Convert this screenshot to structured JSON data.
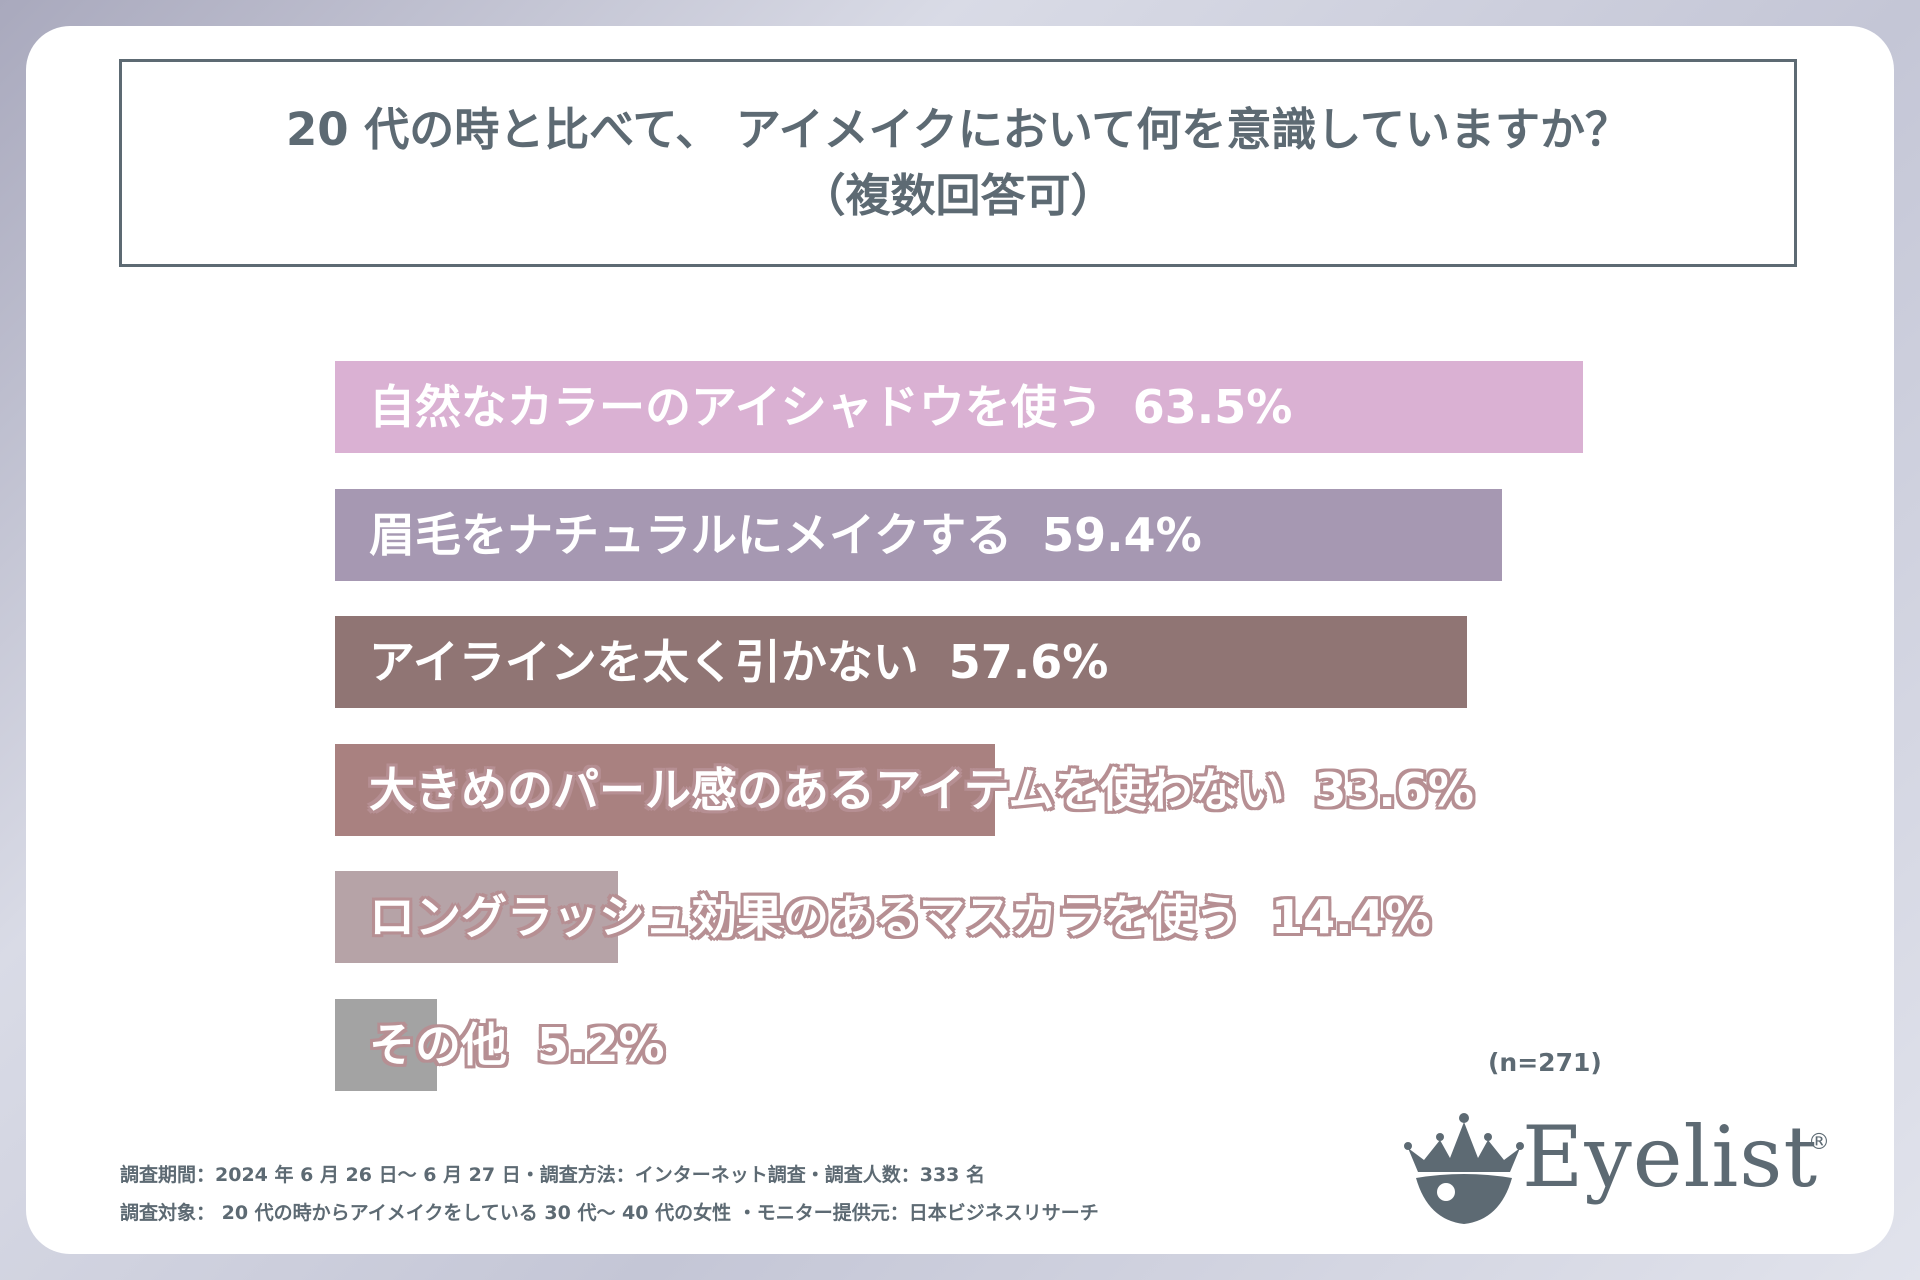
{
  "title": {
    "line1": "20 代の時と比べて、 アイメイクにおいて何を意識していますか？",
    "line2": "（複数回答可）"
  },
  "chart_data": {
    "type": "bar",
    "orientation": "horizontal",
    "title": "20 代の時と比べて、 アイメイクにおいて何を意識していますか？（複数回答可）",
    "unit": "%",
    "categories": [
      "自然なカラーのアイシャドウを使う",
      "眉毛をナチュラルにメイクする",
      "アイラインを太く引かない",
      "大きめのパール感のあるアイテムを使わない",
      "ロングラッシュ効果のあるマスカラを使う",
      "その他"
    ],
    "values": [
      63.5,
      59.4,
      57.6,
      33.6,
      14.4,
      5.2
    ],
    "value_labels": [
      "63.5%",
      "59.4%",
      "57.6%",
      "33.6%",
      "14.4%",
      "5.2%"
    ],
    "colors": [
      "#dab1d3",
      "#a698b2",
      "#907574",
      "#a98180",
      "#b6a3a7",
      "#a3a3a3"
    ],
    "xlim": [
      0,
      100
    ],
    "legend": "none"
  },
  "sample_size": "(n=271)",
  "footnotes": {
    "line1": "調査期間：2024 年 6 月 26 日〜 6 月 27 日・調査方法：インターネット調査・調査人数：333 名",
    "line2": "調査対象： 20 代の時からアイメイクをしている 30 代〜 40 代の女性 ・モニター提供元：日本ビジネスリサーチ"
  },
  "brand": {
    "name": "Eyelist",
    "registered": "®",
    "color": "#5d6a73"
  }
}
